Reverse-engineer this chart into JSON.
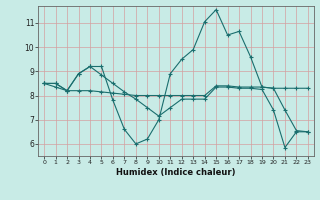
{
  "xlabel": "Humidex (Indice chaleur)",
  "bg_color": "#c8ebe6",
  "line_color": "#1a6e6e",
  "grid_color": "#d4a0a0",
  "xlim": [
    -0.5,
    23.5
  ],
  "ylim": [
    5.5,
    11.7
  ],
  "xticks": [
    0,
    1,
    2,
    3,
    4,
    5,
    6,
    7,
    8,
    9,
    10,
    11,
    12,
    13,
    14,
    15,
    16,
    17,
    18,
    19,
    20,
    21,
    22,
    23
  ],
  "yticks": [
    6,
    7,
    8,
    9,
    10,
    11
  ],
  "line1_x": [
    0,
    1,
    2,
    3,
    4,
    5,
    6,
    7,
    8,
    9,
    10,
    11,
    12,
    13,
    14,
    15,
    16,
    17,
    18,
    19,
    20,
    21,
    22,
    23
  ],
  "line1_y": [
    8.5,
    8.5,
    8.2,
    8.9,
    9.2,
    9.2,
    7.8,
    6.6,
    6.0,
    6.2,
    7.0,
    8.9,
    9.5,
    9.9,
    11.05,
    11.55,
    10.5,
    10.65,
    9.6,
    8.35,
    8.3,
    7.4,
    6.55,
    6.5
  ],
  "line2_x": [
    0,
    1,
    2,
    3,
    4,
    5,
    6,
    7,
    8,
    9,
    10,
    11,
    12,
    13,
    14,
    15,
    16,
    17,
    18,
    19,
    20,
    21,
    22,
    23
  ],
  "line2_y": [
    8.5,
    8.5,
    8.2,
    8.9,
    9.2,
    8.85,
    8.5,
    8.15,
    7.85,
    7.5,
    7.15,
    7.5,
    7.85,
    7.85,
    7.85,
    8.35,
    8.35,
    8.3,
    8.3,
    8.25,
    7.4,
    5.85,
    6.5,
    6.5
  ],
  "line3_x": [
    0,
    1,
    2,
    3,
    4,
    5,
    6,
    7,
    8,
    9,
    10,
    11,
    12,
    13,
    14,
    15,
    16,
    17,
    18,
    19,
    20,
    21,
    22,
    23
  ],
  "line3_y": [
    8.5,
    8.35,
    8.2,
    8.2,
    8.2,
    8.15,
    8.1,
    8.05,
    8.0,
    8.0,
    8.0,
    8.0,
    8.0,
    8.0,
    8.0,
    8.4,
    8.4,
    8.35,
    8.35,
    8.35,
    8.3,
    8.3,
    8.3,
    8.3
  ],
  "marker": "+",
  "markersize": 3.5,
  "linewidth": 0.8
}
